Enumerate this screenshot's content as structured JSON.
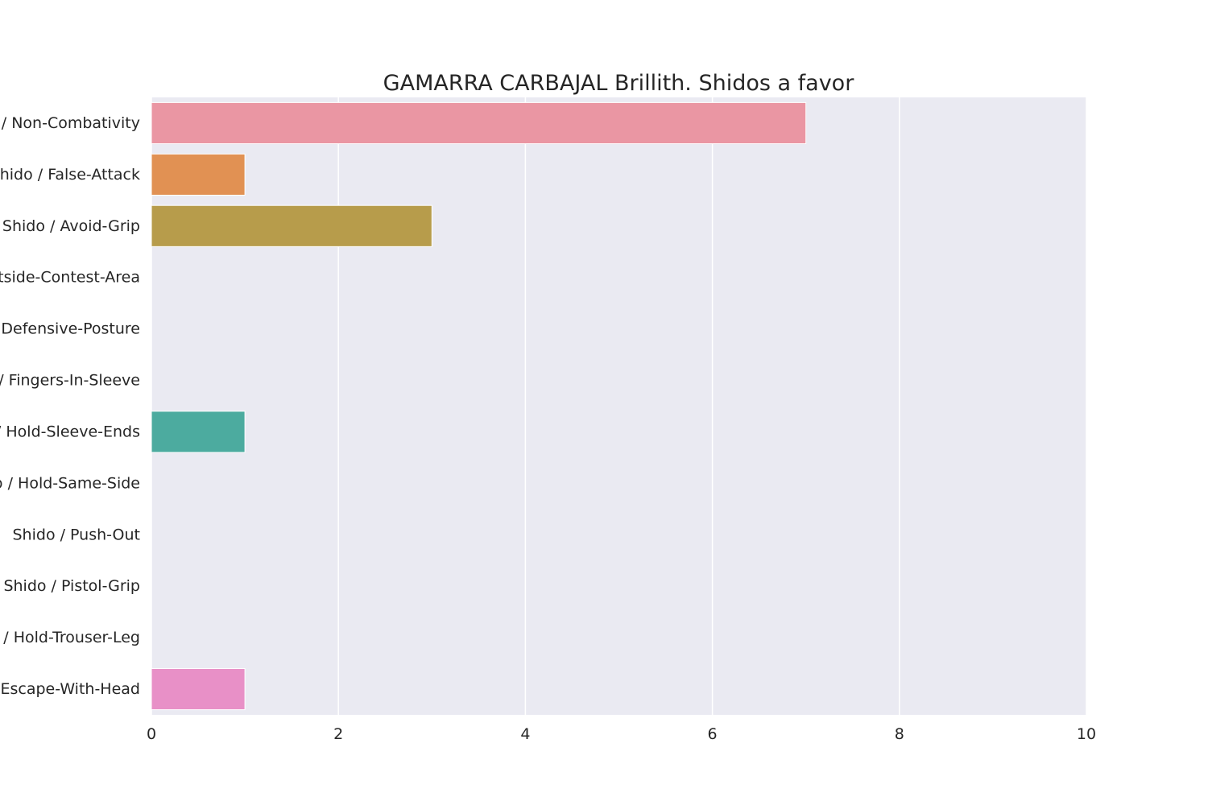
{
  "chart_data": {
    "type": "bar",
    "orientation": "horizontal",
    "title": "GAMARRA CARBAJAL Brillith. Shidos a favor",
    "xlabel": "",
    "ylabel": "",
    "xlim": [
      0,
      10
    ],
    "xticks": [
      0,
      2,
      4,
      6,
      8,
      10
    ],
    "grid": true,
    "categories": [
      "Shido / Non-Combativity",
      "Shido / False-Attack",
      "Shido / Avoid-Grip",
      "Shido / Outside-Contest-Area",
      "Shido / Defensive-Posture",
      "Shido / Fingers-In-Sleeve",
      "Shido / Hold-Sleeve-Ends",
      "Shido / Hold-Same-Side",
      "Shido / Push-Out",
      "Shido / Pistol-Grip",
      "Shido / Hold-Trouser-Leg",
      "Shido / Escape-With-Head"
    ],
    "values": [
      7,
      1,
      3,
      0,
      0,
      0,
      1,
      0,
      0,
      0,
      0,
      1
    ],
    "colors": [
      "#ea96a3",
      "#e19153",
      "#b79c4b",
      "#a0aa4a",
      "#69b04a",
      "#4fb18c",
      "#4cab9f",
      "#4fa8b8",
      "#5ea2d4",
      "#a99ae2",
      "#dc89da",
      "#e890c7"
    ],
    "background_color": "#eaeaf2",
    "grid_color": "#ffffff"
  }
}
